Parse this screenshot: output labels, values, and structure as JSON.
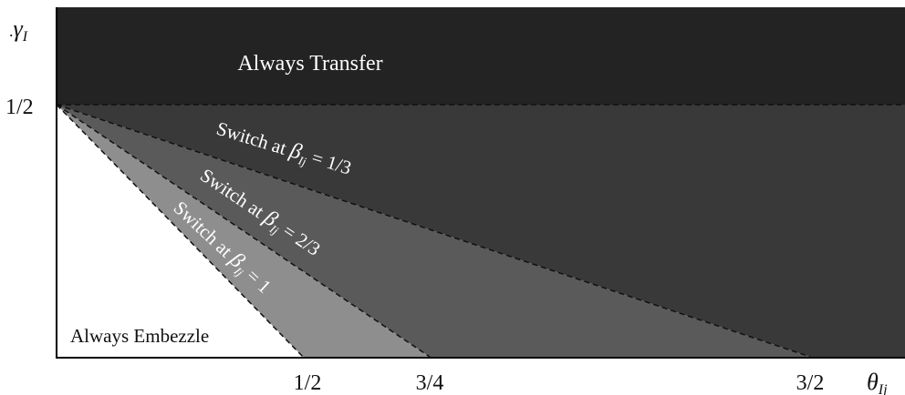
{
  "axes": {
    "y_label": "γ",
    "y_label_sub": "I",
    "y_label_prefix": ".",
    "x_label": "θ",
    "x_label_sub": "Ij",
    "y_tick": "1/2",
    "x_ticks": [
      "1/2",
      "3/4",
      "3/2"
    ]
  },
  "regions": {
    "top": "Always Transfer",
    "bottom": "Always Embezzle",
    "switch_prefix": "Switch at ",
    "beta": "β",
    "beta_sub": "Ij",
    "switch_1": " = 1/3",
    "switch_2": " = 2/3",
    "switch_3": " = 1"
  },
  "colors": {
    "top_region": "#232323",
    "region_1_3": "#393939",
    "region_2_3": "#5a5a5a",
    "region_1": "#8e8e8e",
    "embezzle": "#ffffff",
    "text_light": "#ffffff",
    "text_dark": "#111111"
  }
}
